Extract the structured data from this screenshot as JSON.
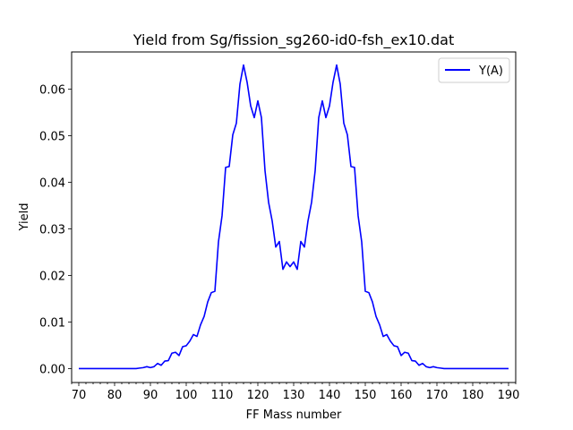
{
  "chart_data": {
    "type": "line",
    "title": "Yield from  Sg/fission_sg260-id0-fsh_ex10.dat",
    "xlabel": "FF Mass number",
    "ylabel": "Yield",
    "xlim": [
      68,
      192
    ],
    "ylim": [
      -0.003,
      0.068
    ],
    "xticks": [
      70,
      80,
      90,
      100,
      110,
      120,
      130,
      140,
      150,
      160,
      170,
      180,
      190
    ],
    "yticks": [
      0.0,
      0.01,
      0.02,
      0.03,
      0.04,
      0.05,
      0.06
    ],
    "ytick_labels": [
      "0.00",
      "0.01",
      "0.02",
      "0.03",
      "0.04",
      "0.05",
      "0.06"
    ],
    "grid": false,
    "legend": "top-right",
    "series": [
      {
        "name": "Y(A)",
        "color": "#0000ff",
        "x": [
          70,
          71,
          72,
          73,
          74,
          75,
          76,
          77,
          78,
          79,
          80,
          81,
          82,
          83,
          84,
          85,
          86,
          87,
          88,
          89,
          90,
          91,
          92,
          93,
          94,
          95,
          96,
          97,
          98,
          99,
          100,
          101,
          102,
          103,
          104,
          105,
          106,
          107,
          108,
          109,
          110,
          111,
          112,
          113,
          114,
          115,
          116,
          117,
          118,
          119,
          120,
          121,
          122,
          123,
          124,
          125,
          126,
          127,
          128,
          129,
          130,
          131,
          132,
          133,
          134,
          135,
          136,
          137,
          138,
          139,
          140,
          141,
          142,
          143,
          144,
          145,
          146,
          147,
          148,
          149,
          150,
          151,
          152,
          153,
          154,
          155,
          156,
          157,
          158,
          159,
          160,
          161,
          162,
          163,
          164,
          165,
          166,
          167,
          168,
          169,
          170,
          171,
          172,
          173,
          174,
          175,
          176,
          177,
          178,
          179,
          180,
          181,
          182,
          183,
          184,
          185,
          186,
          187,
          188,
          189,
          190
        ],
        "y": [
          0,
          0,
          0,
          0,
          0,
          0,
          0,
          0,
          0,
          0,
          0,
          0,
          0,
          0,
          0,
          0,
          0,
          0.0001,
          0.0002,
          0.0004,
          0.0002,
          0.0004,
          0.0011,
          0.0007,
          0.0016,
          0.0017,
          0.0033,
          0.0035,
          0.0028,
          0.0047,
          0.0049,
          0.0059,
          0.0073,
          0.0069,
          0.0094,
          0.0112,
          0.0143,
          0.0163,
          0.0166,
          0.0272,
          0.0328,
          0.0432,
          0.0434,
          0.0502,
          0.0527,
          0.0611,
          0.0652,
          0.0615,
          0.0564,
          0.0539,
          0.0575,
          0.0539,
          0.0425,
          0.0357,
          0.0317,
          0.0261,
          0.0273,
          0.0213,
          0.0229,
          0.0219,
          0.0229,
          0.0213,
          0.0273,
          0.0261,
          0.0317,
          0.0357,
          0.0425,
          0.0539,
          0.0575,
          0.0539,
          0.0564,
          0.0615,
          0.0652,
          0.0611,
          0.0527,
          0.0502,
          0.0434,
          0.0432,
          0.0328,
          0.0272,
          0.0166,
          0.0163,
          0.0143,
          0.0112,
          0.0094,
          0.0069,
          0.0073,
          0.0059,
          0.0049,
          0.0047,
          0.0028,
          0.0035,
          0.0033,
          0.0017,
          0.0016,
          0.0007,
          0.0011,
          0.0004,
          0.0002,
          0.0004,
          0.0002,
          0.0001,
          0,
          0,
          0,
          0,
          0,
          0,
          0,
          0,
          0,
          0,
          0,
          0,
          0,
          0,
          0,
          0,
          0,
          0,
          0
        ]
      }
    ]
  }
}
